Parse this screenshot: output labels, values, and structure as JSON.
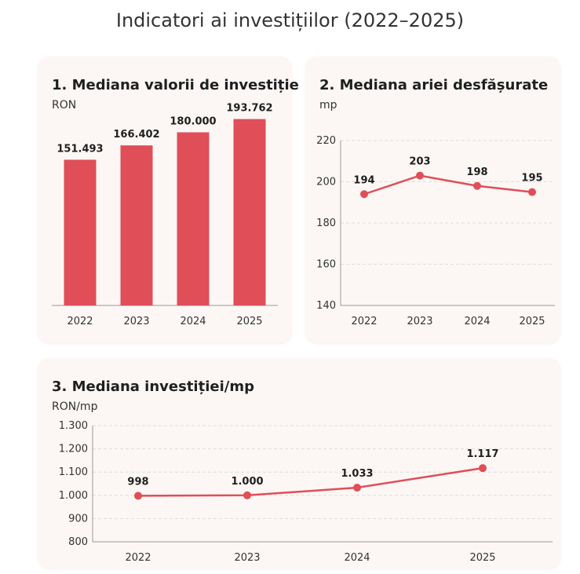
{
  "title": "Indicatori ai investițiilor (2022–2025)",
  "colors": {
    "accent": "#e04e58",
    "card_bg": "#fcf7f5",
    "grid": "#dddddd"
  },
  "chart_data": [
    {
      "type": "bar",
      "title": "1. Mediana valorii de investiție",
      "ylabel": "RON",
      "categories": [
        "2022",
        "2023",
        "2024",
        "2025"
      ],
      "values": [
        151493,
        166402,
        180000,
        193762
      ],
      "labels": [
        "151.493",
        "166.402",
        "180.000",
        "193.762"
      ],
      "ylim": [
        0,
        200000
      ],
      "grid": false
    },
    {
      "type": "line",
      "title": "2. Mediana ariei desfășurate",
      "ylabel": "mp",
      "categories": [
        "2022",
        "2023",
        "2024",
        "2025"
      ],
      "values": [
        194,
        203,
        198,
        195
      ],
      "labels": [
        "194",
        "203",
        "198",
        "195"
      ],
      "ylim": [
        140,
        220
      ],
      "yticks": [
        140,
        160,
        180,
        200,
        220
      ],
      "ytick_labels": [
        "140",
        "160",
        "180",
        "200",
        "220"
      ],
      "grid": true
    },
    {
      "type": "line",
      "title": "3. Mediana investiției/mp",
      "ylabel": "RON/mp",
      "categories": [
        "2022",
        "2023",
        "2024",
        "2025"
      ],
      "values": [
        998,
        1000,
        1033,
        1117
      ],
      "labels": [
        "998",
        "1.000",
        "1.033",
        "1.117"
      ],
      "ylim": [
        800,
        1300
      ],
      "yticks": [
        800,
        900,
        1000,
        1100,
        1200,
        1300
      ],
      "ytick_labels": [
        "800",
        "900",
        "1.000",
        "1.100",
        "1.200",
        "1.300"
      ],
      "grid": true
    }
  ]
}
